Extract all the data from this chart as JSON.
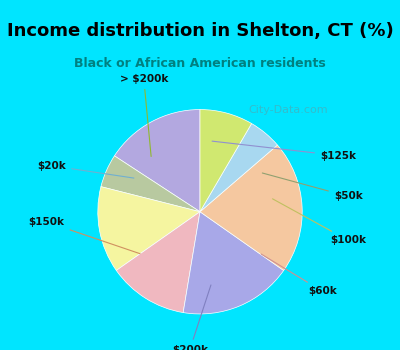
{
  "title": "Income distribution in Shelton, CT (%)",
  "subtitle": "Black or African American residents",
  "labels": [
    "$125k",
    "$50k",
    "$100k",
    "$60k",
    "$200k",
    "$150k",
    "$20k",
    "> $200k"
  ],
  "values": [
    15,
    5,
    13,
    12,
    17,
    20,
    5,
    8
  ],
  "colors": [
    "#b3a8e0",
    "#b8c9a0",
    "#f5f5a0",
    "#f0b8c0",
    "#a8a8e8",
    "#f5c8a0",
    "#a8d8f0",
    "#d0e870"
  ],
  "background_top": "#00e5ff",
  "chart_bg": "#e8f5e9",
  "title_color": "#000000",
  "subtitle_color": "#008080",
  "watermark": "City-Data.com",
  "label_colors": [
    "#9090d0",
    "#90a070",
    "#c0c060",
    "#d09090",
    "#8080c0",
    "#d09060",
    "#70b0d0",
    "#90b830"
  ],
  "startangle": 90
}
